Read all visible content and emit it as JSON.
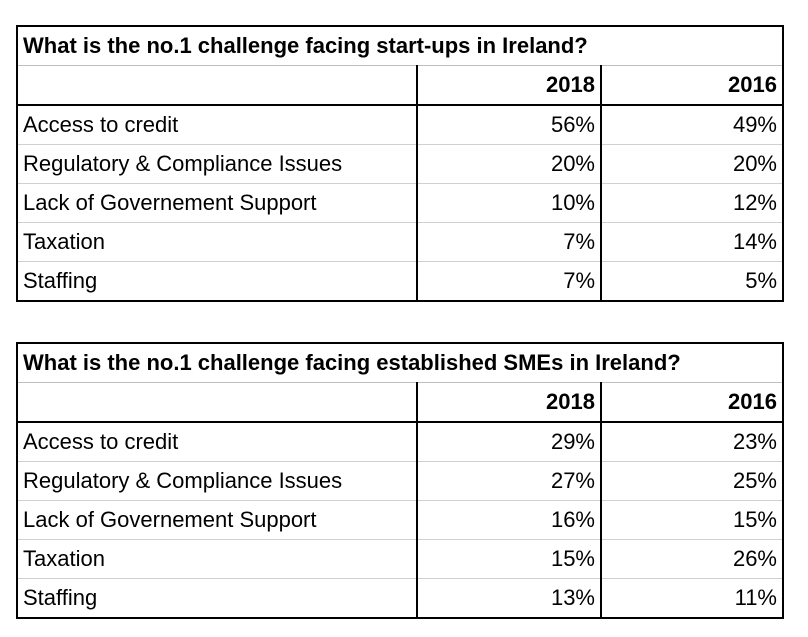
{
  "chart_data": [
    {
      "type": "table",
      "title": "What is the no.1 challenge facing start-ups in Ireland?",
      "columns": [
        "2018",
        "2016"
      ],
      "rows": [
        {
          "label": "Access to credit",
          "values": [
            "56%",
            "49%"
          ]
        },
        {
          "label": "Regulatory & Compliance Issues",
          "values": [
            "20%",
            "20%"
          ]
        },
        {
          "label": "Lack of Governement Support",
          "values": [
            "10%",
            "12%"
          ]
        },
        {
          "label": "Taxation",
          "values": [
            "7%",
            "14%"
          ]
        },
        {
          "label": "Staffing",
          "values": [
            "7%",
            "5%"
          ]
        }
      ]
    },
    {
      "type": "table",
      "title": "What is the no.1 challenge facing established SMEs in Ireland?",
      "columns": [
        "2018",
        "2016"
      ],
      "rows": [
        {
          "label": "Access to credit",
          "values": [
            "29%",
            "23%"
          ]
        },
        {
          "label": "Regulatory & Compliance Issues",
          "values": [
            "27%",
            "25%"
          ]
        },
        {
          "label": "Lack of Governement Support",
          "values": [
            "16%",
            "15%"
          ]
        },
        {
          "label": "Taxation",
          "values": [
            "15%",
            "26%"
          ]
        },
        {
          "label": "Staffing",
          "values": [
            "13%",
            "11%"
          ]
        }
      ]
    }
  ]
}
